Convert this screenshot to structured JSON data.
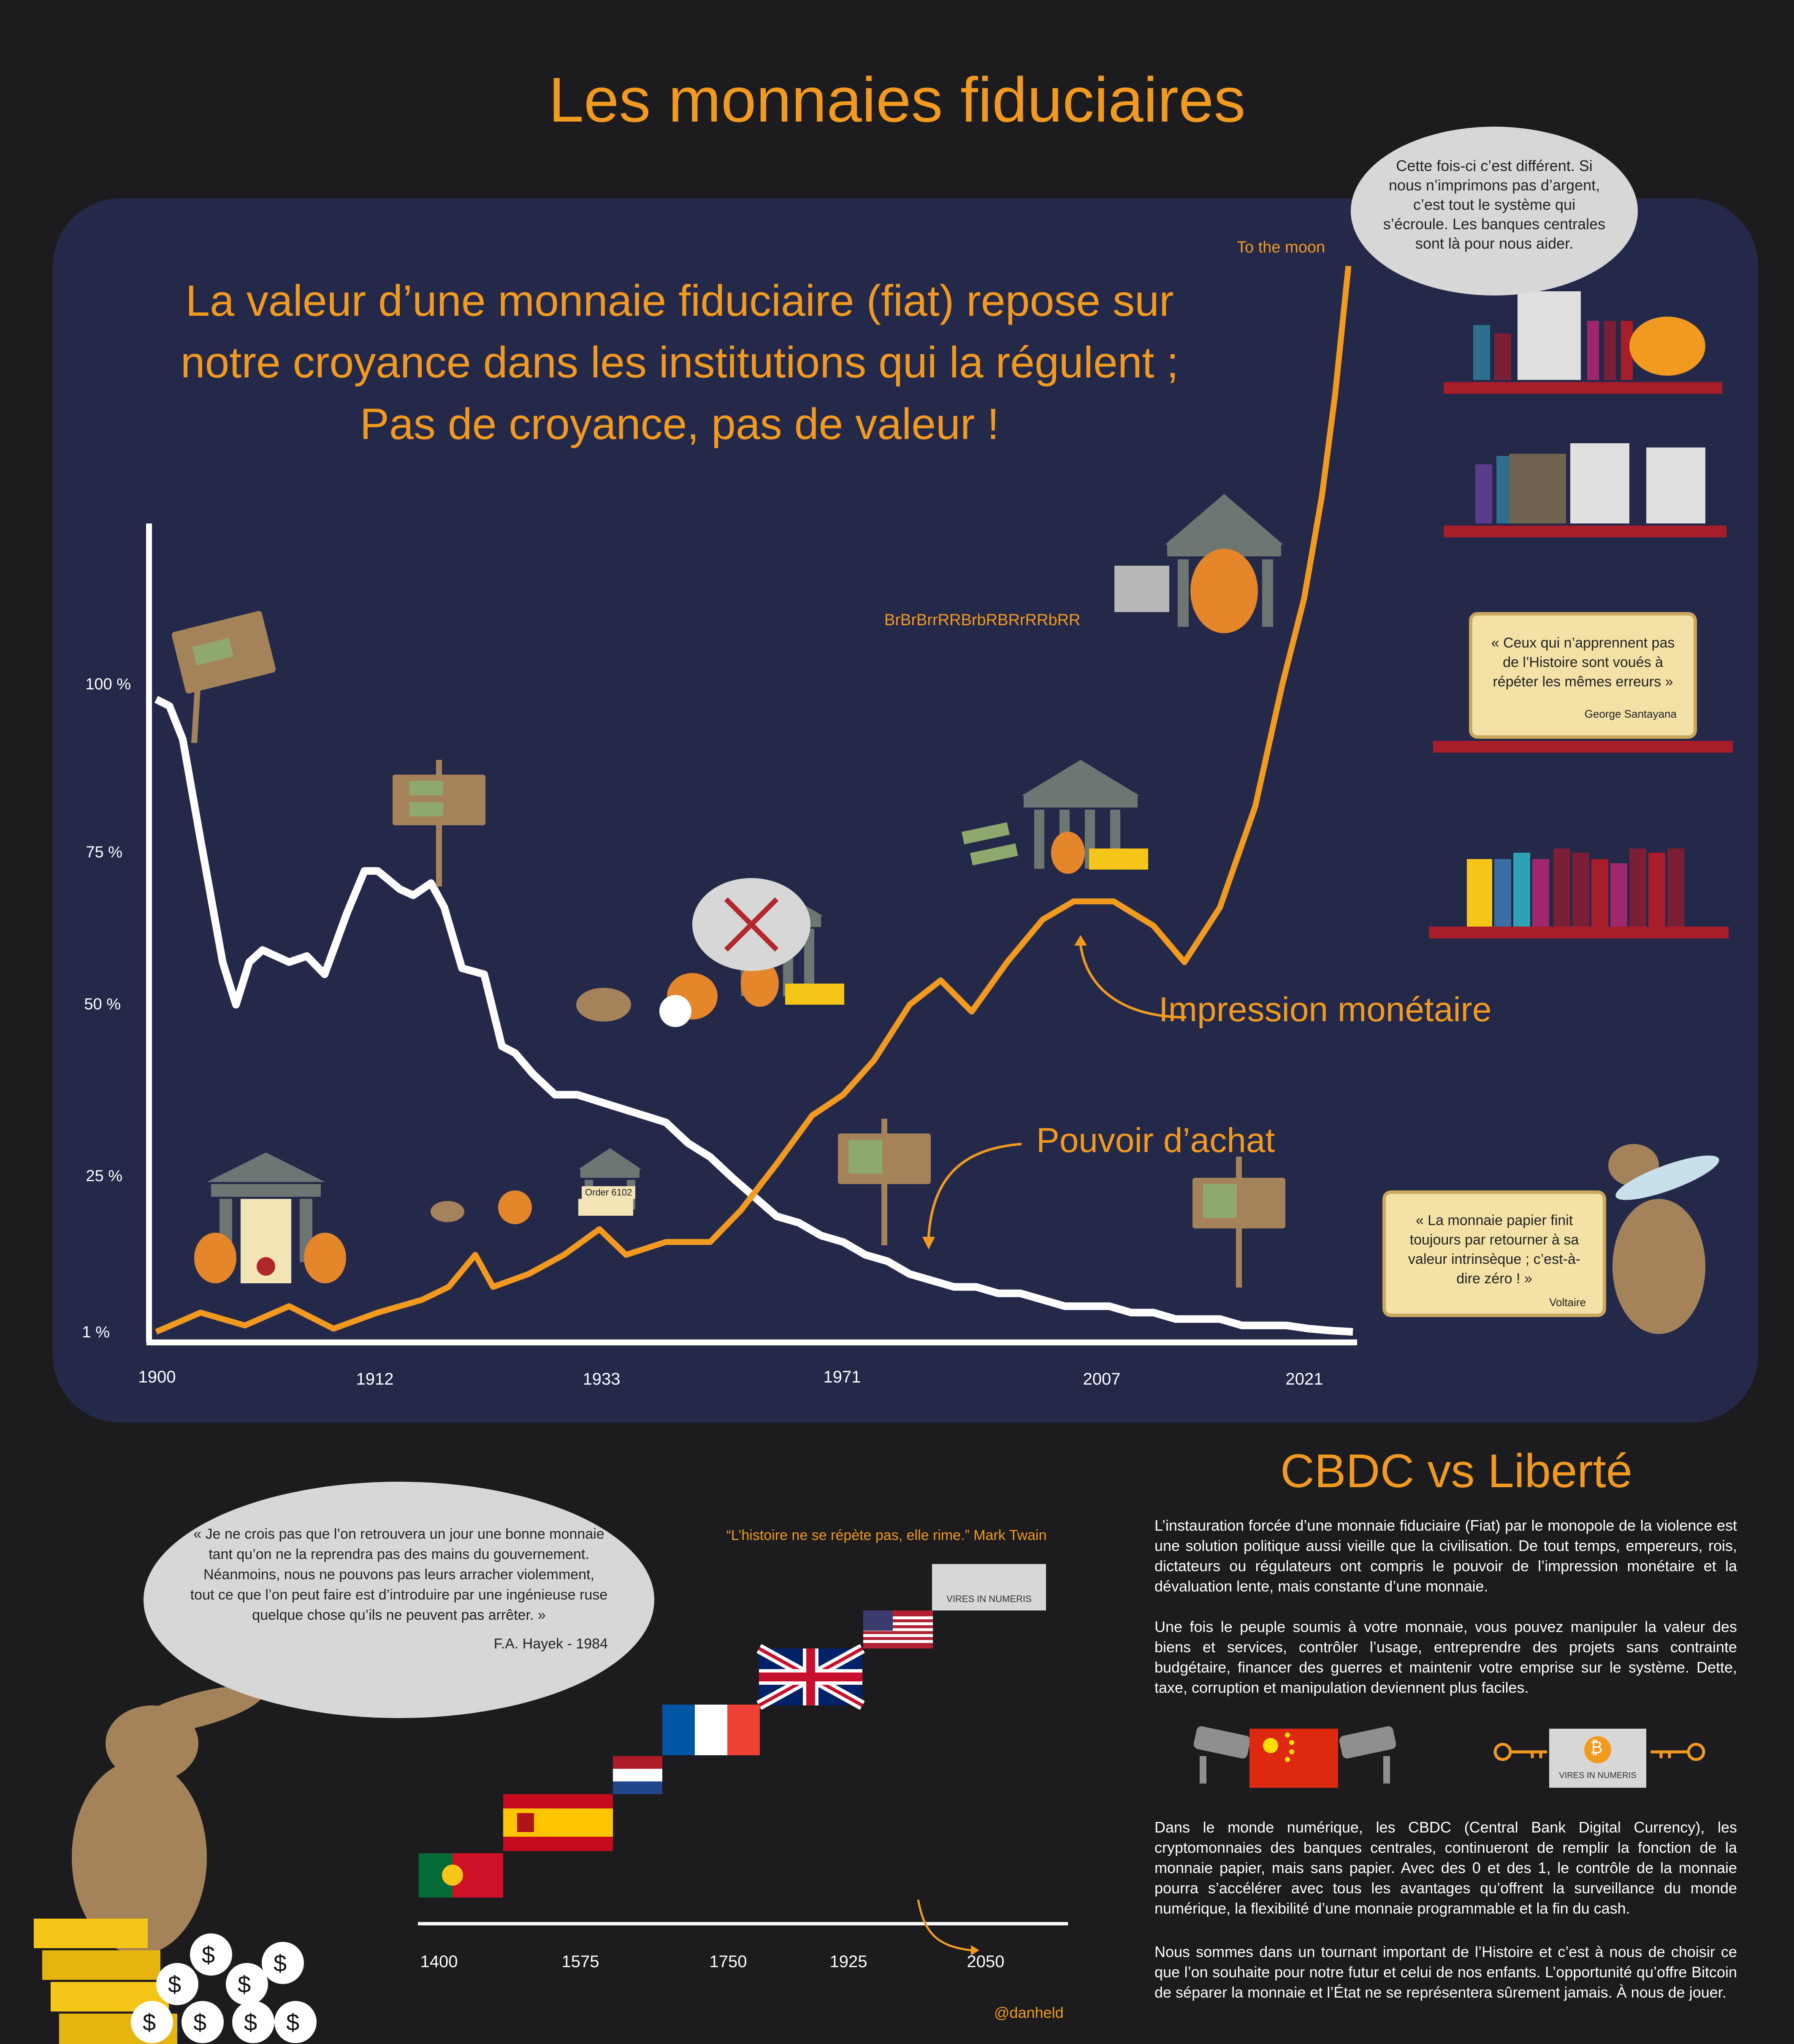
{
  "title": "Les monnaies fiduciaires",
  "subtitle_lines": [
    "La valeur d’une monnaie fiduciaire (fiat) repose sur",
    "notre croyance dans les institutions qui la régulent ;",
    "Pas de croyance, pas de valeur !"
  ],
  "chart_data": {
    "type": "line",
    "x_tick_labels": [
      "1900",
      "1912",
      "1933",
      "1971",
      "2007",
      "2021"
    ],
    "y_tick_labels": [
      "100 %",
      "75 %",
      "50 %",
      "25 %",
      "1 %"
    ],
    "series": [
      {
        "name": "Pouvoir d’achat",
        "color": "#ffffff",
        "points": [
          [
            0,
            98
          ],
          [
            0.3,
            97
          ],
          [
            0.6,
            92
          ],
          [
            1.0,
            77
          ],
          [
            1.5,
            57
          ],
          [
            1.8,
            50
          ],
          [
            2.1,
            57
          ],
          [
            2.4,
            59
          ],
          [
            3.0,
            57
          ],
          [
            3.4,
            58
          ],
          [
            3.8,
            55
          ],
          [
            4.3,
            65
          ],
          [
            4.7,
            72
          ],
          [
            5.0,
            72
          ],
          [
            5.5,
            69
          ],
          [
            5.8,
            68
          ],
          [
            6.2,
            70
          ],
          [
            6.5,
            66
          ],
          [
            6.9,
            56
          ],
          [
            7.4,
            55
          ],
          [
            7.8,
            44
          ],
          [
            8.1,
            43
          ],
          [
            8.5,
            40
          ],
          [
            9.0,
            37
          ],
          [
            9.5,
            37
          ],
          [
            10.0,
            36
          ],
          [
            10.5,
            35
          ],
          [
            11.0,
            34
          ],
          [
            11.5,
            33
          ],
          [
            12.0,
            30
          ],
          [
            12.5,
            28
          ],
          [
            13.0,
            25
          ],
          [
            13.5,
            22
          ],
          [
            14.0,
            19
          ],
          [
            14.5,
            18
          ],
          [
            15.0,
            16
          ],
          [
            15.5,
            15
          ],
          [
            16.0,
            13
          ],
          [
            16.5,
            12
          ],
          [
            17.0,
            10
          ],
          [
            17.5,
            9
          ],
          [
            18.0,
            8
          ],
          [
            18.5,
            8
          ],
          [
            19.0,
            7
          ],
          [
            19.5,
            7
          ],
          [
            20.0,
            6
          ],
          [
            20.5,
            5
          ],
          [
            21.0,
            5
          ],
          [
            21.5,
            5
          ],
          [
            22.0,
            4
          ],
          [
            22.5,
            4
          ],
          [
            23.0,
            3
          ],
          [
            23.5,
            3
          ],
          [
            24.0,
            3
          ],
          [
            24.5,
            2
          ],
          [
            25.0,
            2
          ],
          [
            25.5,
            2
          ],
          [
            26.0,
            1.5
          ],
          [
            26.5,
            1.2
          ],
          [
            27.0,
            1.0
          ]
        ]
      },
      {
        "name": "Impression monétaire",
        "color": "#f29a1f",
        "points": [
          [
            0,
            1
          ],
          [
            1.0,
            4
          ],
          [
            2.0,
            2
          ],
          [
            3.0,
            5
          ],
          [
            4.0,
            1.5
          ],
          [
            5.0,
            4
          ],
          [
            6.0,
            6
          ],
          [
            6.6,
            8
          ],
          [
            7.2,
            13
          ],
          [
            7.6,
            8
          ],
          [
            8.4,
            10
          ],
          [
            9.2,
            13
          ],
          [
            10.0,
            17
          ],
          [
            10.6,
            13
          ],
          [
            11.5,
            15
          ],
          [
            12.5,
            15
          ],
          [
            13.2,
            20
          ],
          [
            14.0,
            27
          ],
          [
            14.8,
            34
          ],
          [
            15.5,
            37
          ],
          [
            16.2,
            42
          ],
          [
            17.0,
            50
          ],
          [
            17.7,
            54
          ],
          [
            18.4,
            49
          ],
          [
            19.2,
            57
          ],
          [
            20.0,
            64
          ],
          [
            20.7,
            67
          ],
          [
            21.6,
            67
          ],
          [
            22.5,
            63
          ],
          [
            23.2,
            57
          ],
          [
            24.0,
            66
          ],
          [
            24.8,
            82
          ],
          [
            25.4,
            100
          ],
          [
            25.9,
            130
          ],
          [
            26.3,
            165
          ],
          [
            26.6,
            200
          ],
          [
            26.9,
            244
          ]
        ]
      }
    ],
    "annotations": [
      "To the moon",
      "BrBrBrrRRBrbRBRrRRbRR",
      "Impression monétaire",
      "Pouvoir d’achat"
    ],
    "grid": false
  },
  "quotes": {
    "bubble_top": "Cette fois-ci c’est différent. Si nous n’imprimons pas d’argent, c’est tout le système qui s’écroule. Les banques centrales sont là pour nous aider.",
    "santayana_text": "« Ceux qui n’apprennent pas de l’Histoire sont voués à répéter les mêmes erreurs »",
    "santayana_author": "George Santayana",
    "voltaire_text": "« La monnaie papier finit toujours par retourner à sa valeur intrinsèque ; c’est-à-dire zéro ! »",
    "voltaire_author": "Voltaire",
    "hayek_text": "« Je ne crois pas que l’on retrouvera un jour une bonne monnaie tant qu’on ne la reprendra pas des mains du gouvernement. Néanmoins, nous ne pouvons pas leurs arracher violemment, tout ce que l’on peut faire est d’introduire par une ingénieuse ruse quelque chose qu’ils ne peuvent pas arrêter. »",
    "hayek_author": "F.A. Hayek - 1984",
    "twain": "“L’histoire ne se répète pas, elle rime.” Mark Twain"
  },
  "labels": {
    "order": "Order 6102",
    "vires": "VIRES IN NUMERIS",
    "handle": "@danheld",
    "money_bag_symbol": "$",
    "bitcoin_symbol": "₿"
  },
  "timeline": {
    "ticks": [
      "1400",
      "1575",
      "1750",
      "1925",
      "2050"
    ]
  },
  "cbdc": {
    "title": "CBDC vs Liberté",
    "paragraphs": [
      "L’instauration forcée d’une monnaie fiduciaire (Fiat) par le monopole de la violence est une solution politique aussi vieille que la civilisation. De tout temps, empereurs, rois, dictateurs ou régulateurs ont compris le pouvoir de l’impression monétaire et la dévaluation lente, mais constante d’une monnaie.",
      "Une fois le peuple soumis à votre monnaie, vous pouvez manipuler la valeur des biens et services, contrôler l’usage, entreprendre des projets sans contrainte budgétaire, financer des guerres et maintenir votre emprise sur le système. Dette, taxe, corruption et manipulation deviennent plus faciles.",
      "Dans le monde numérique, les CBDC (Central Bank Digital Currency), les cryptomonnaies des banques centrales, continueront de remplir la fonction de la monnaie papier, mais sans papier. Avec des 0 et des 1, le contrôle de la monnaie pourra s’accélérer avec tous les avantages qu’offrent la surveillance du monde numérique, la flexibilité d’une monnaie programmable et la fin du cash.",
      "Nous sommes dans un tournant important de l’Histoire et c’est à nous de choisir ce que l’on souhaite pour notre futur et celui de nos enfants. L’opportunité qu’offre Bitcoin de séparer la monnaie et l’État ne se représentera sûrement jamais. À nous de jouer."
    ]
  }
}
